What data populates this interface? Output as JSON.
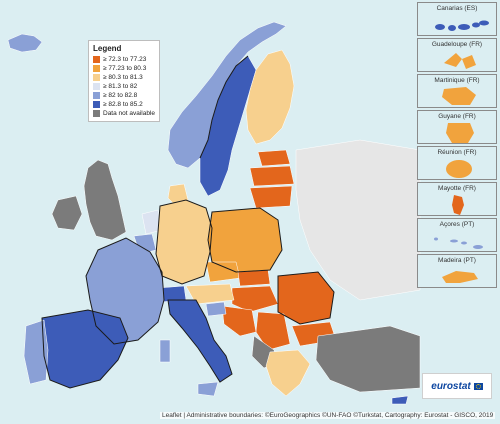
{
  "legend": {
    "title": "Legend",
    "items": [
      {
        "label": "≥ 72.3 to 77.23",
        "color": "#e3661c"
      },
      {
        "label": "≥ 77.23 to 80.3",
        "color": "#f1a33d"
      },
      {
        "label": "≥ 80.3 to 81.3",
        "color": "#f7d08e"
      },
      {
        "label": "≥ 81.3 to 82",
        "color": "#dce3f1"
      },
      {
        "label": "≥ 82 to 82.8",
        "color": "#8aa0d6"
      },
      {
        "label": "≥ 82.8 to 85.2",
        "color": "#3d5cb8"
      },
      {
        "label": "Data not available",
        "color": "#7b7b7b"
      }
    ]
  },
  "insets": [
    {
      "title": "Canarias (ES)",
      "color": "#3d5cb8"
    },
    {
      "title": "Guadeloupe (FR)",
      "color": "#f1a33d"
    },
    {
      "title": "Martinique (FR)",
      "color": "#f1a33d"
    },
    {
      "title": "Guyane (FR)",
      "color": "#f1a33d"
    },
    {
      "title": "Réunion (FR)",
      "color": "#f1a33d"
    },
    {
      "title": "Mayotte (FR)",
      "color": "#e3661c"
    },
    {
      "title": "Açores (PT)",
      "color": "#8aa0d6"
    },
    {
      "title": "Madeira (PT)",
      "color": "#f1a33d"
    }
  ],
  "logo": {
    "text": "eurostat"
  },
  "attribution": "Leaflet | Administrative boundaries: ©EuroGeographics ©UN-FAO ©Turkstat, Cartography: Eurostat - GISCO, 2019",
  "colors": {
    "sea": "#dbeef2",
    "border": "#1a1a1a"
  }
}
